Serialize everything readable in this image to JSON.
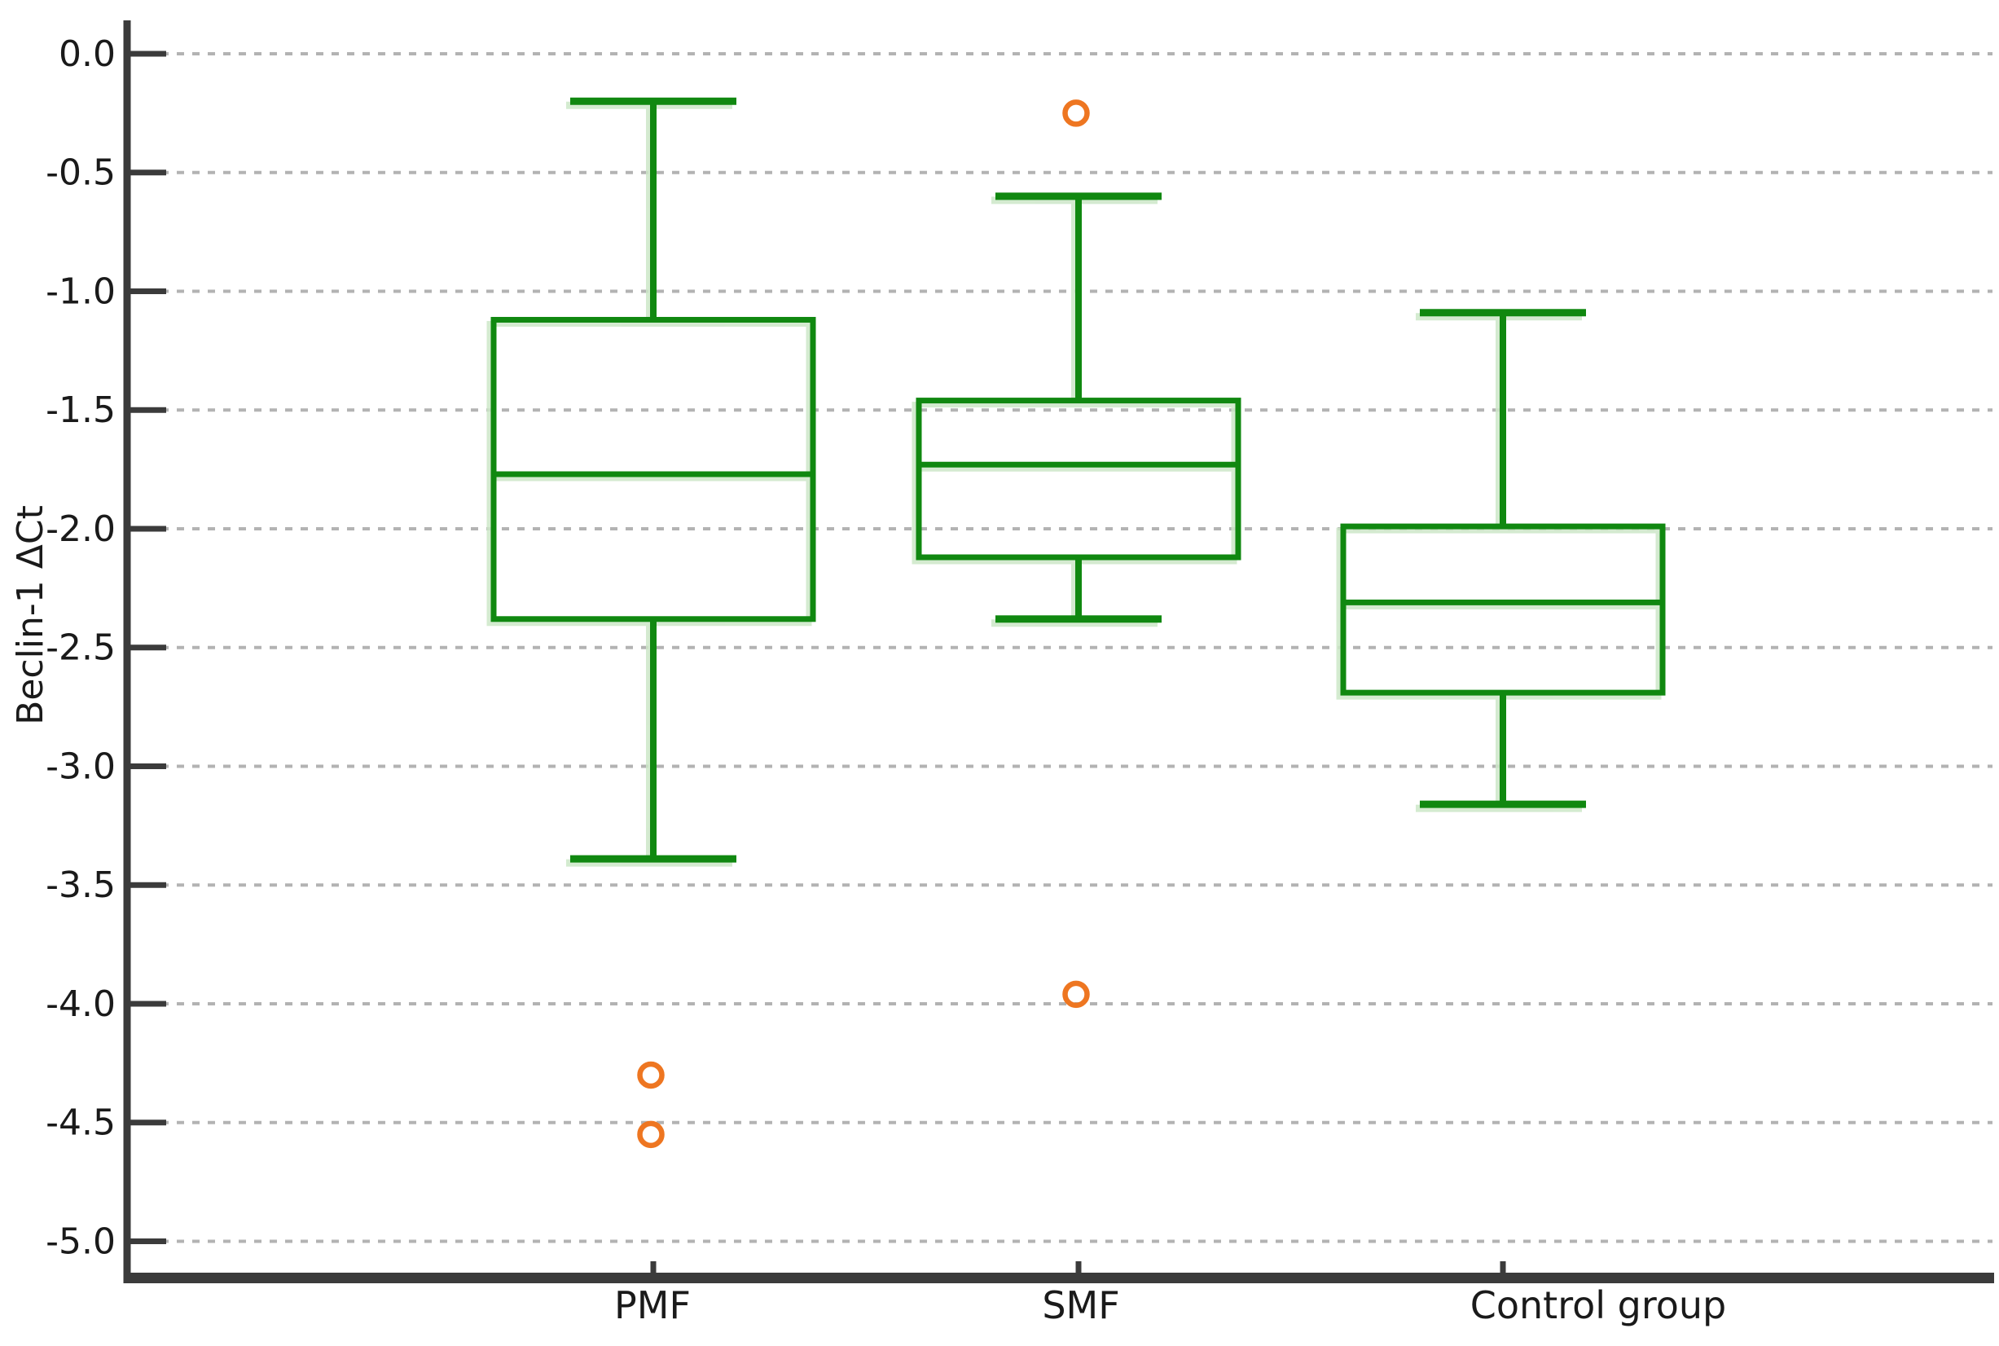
{
  "chart_data": {
    "type": "box",
    "title": "",
    "ylabel": "Beclin-1 ΔCt",
    "xlabel": "",
    "ylim": [
      -5.0,
      0.0
    ],
    "ytick_step": 0.5,
    "yticks": [
      0.0,
      -0.5,
      -1.0,
      -1.5,
      -2.0,
      -2.5,
      -3.0,
      -3.5,
      -4.0,
      -4.5,
      -5.0
    ],
    "ytick_labels": [
      "0.0",
      "-0.5",
      "-1.0",
      "-1.5",
      "-2.0",
      "-2.5",
      "-3.0",
      "-3.5",
      "-4.0",
      "-4.5",
      "-5.0"
    ],
    "categories": [
      "PMF",
      "SMF",
      "Control group"
    ],
    "grid": "horizontal dotted gridlines at every tick",
    "legend": "none",
    "series": [
      {
        "name": "PMF",
        "whisker_high": -0.2,
        "q3": -1.12,
        "median": -1.77,
        "q1": -2.38,
        "whisker_low": -3.39,
        "outliers": [
          -4.3,
          -4.55
        ]
      },
      {
        "name": "SMF",
        "whisker_high": -0.6,
        "q3": -1.46,
        "median": -1.73,
        "q1": -2.12,
        "whisker_low": -2.38,
        "outliers": [
          -0.25,
          -3.96
        ]
      },
      {
        "name": "Control group",
        "whisker_high": -1.09,
        "q3": -1.99,
        "median": -2.31,
        "q1": -2.69,
        "whisker_low": -3.16,
        "outliers": []
      }
    ],
    "colors": {
      "box_stroke": "#108810",
      "box_shadow": "#cde7c8",
      "outlier_stroke": "#ee7621",
      "axis": "#3b3b3b",
      "gridline": "#b3b3b3",
      "text": "#1a1a1a"
    }
  }
}
